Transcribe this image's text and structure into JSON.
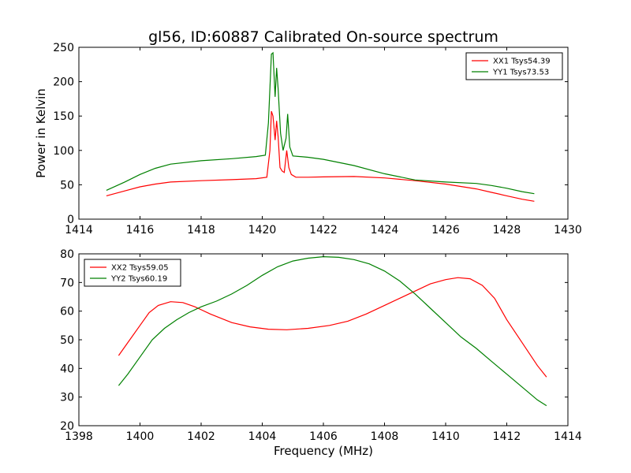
{
  "chart_data": [
    {
      "type": "line",
      "title": "gl56, ID:60887 Calibrated On-source spectrum",
      "xlabel": "",
      "ylabel": "Power in Kelvin",
      "xlim": [
        1414,
        1430
      ],
      "ylim": [
        0,
        250
      ],
      "xticks": [
        1414,
        1416,
        1418,
        1420,
        1422,
        1424,
        1426,
        1428,
        1430
      ],
      "yticks": [
        0,
        50,
        100,
        150,
        200,
        250
      ],
      "grid": false,
      "legend_position": "top-right",
      "series": [
        {
          "name": "XX1 Tsys54.39",
          "color": "#ff0000",
          "x": [
            1414.9,
            1415.5,
            1416.0,
            1416.5,
            1417.0,
            1418.0,
            1419.0,
            1419.8,
            1420.15,
            1420.25,
            1420.3,
            1420.35,
            1420.42,
            1420.47,
            1420.52,
            1420.58,
            1420.65,
            1420.72,
            1420.8,
            1420.87,
            1420.95,
            1421.1,
            1421.5,
            1422.0,
            1423.0,
            1424.0,
            1425.0,
            1426.0,
            1427.0,
            1427.5,
            1428.0,
            1428.5,
            1428.9
          ],
          "y": [
            34,
            41,
            47,
            51,
            54,
            56,
            57.5,
            59,
            61,
            100,
            157,
            150,
            115,
            143,
            120,
            75,
            70,
            68,
            100,
            75,
            65,
            61,
            61,
            61.5,
            62,
            60,
            56,
            51,
            44,
            39,
            34,
            29,
            26
          ]
        },
        {
          "name": "YY1 Tsys73.53",
          "color": "#008000",
          "x": [
            1414.9,
            1415.5,
            1416.0,
            1416.5,
            1417.0,
            1418.0,
            1419.0,
            1419.8,
            1420.1,
            1420.2,
            1420.3,
            1420.35,
            1420.42,
            1420.47,
            1420.52,
            1420.6,
            1420.68,
            1420.78,
            1420.83,
            1420.9,
            1421.0,
            1421.5,
            1422.0,
            1423.0,
            1424.0,
            1425.0,
            1426.0,
            1427.0,
            1427.5,
            1428.0,
            1428.5,
            1428.9
          ],
          "y": [
            42,
            54,
            65,
            74,
            80,
            85,
            88,
            91,
            93,
            140,
            240,
            242,
            178,
            220,
            190,
            125,
            100,
            118,
            153,
            105,
            92,
            90,
            87,
            78,
            66,
            57,
            54,
            52,
            49,
            45,
            40,
            37
          ]
        }
      ]
    },
    {
      "type": "line",
      "title": "",
      "xlabel": "Frequency (MHz)",
      "ylabel": "",
      "xlim": [
        1398,
        1414
      ],
      "ylim": [
        20,
        80
      ],
      "xticks": [
        1398,
        1400,
        1402,
        1404,
        1406,
        1408,
        1410,
        1412,
        1414
      ],
      "yticks": [
        20,
        30,
        40,
        50,
        60,
        70,
        80
      ],
      "grid": false,
      "legend_position": "top-left",
      "series": [
        {
          "name": "XX2 Tsys59.05",
          "color": "#ff0000",
          "x": [
            1399.3,
            1399.6,
            1400.0,
            1400.3,
            1400.6,
            1401.0,
            1401.4,
            1401.8,
            1402.3,
            1403.0,
            1403.6,
            1404.2,
            1404.8,
            1405.5,
            1406.2,
            1406.8,
            1407.4,
            1408.0,
            1408.5,
            1409.0,
            1409.5,
            1410.0,
            1410.4,
            1410.8,
            1411.2,
            1411.6,
            1412.0,
            1412.5,
            1413.0,
            1413.3
          ],
          "y": [
            44.5,
            49,
            55,
            59.5,
            62,
            63.3,
            63,
            61.5,
            59,
            56,
            54.5,
            53.7,
            53.5,
            54,
            55,
            56.5,
            59,
            62,
            64.5,
            67,
            69.5,
            71,
            71.7,
            71.3,
            69,
            64.5,
            57,
            49,
            41,
            37
          ]
        },
        {
          "name": "YY2 Tsys60.19",
          "color": "#008000",
          "x": [
            1399.3,
            1399.6,
            1400.0,
            1400.4,
            1400.8,
            1401.2,
            1401.6,
            1402.0,
            1402.5,
            1403.0,
            1403.5,
            1404.0,
            1404.5,
            1405.0,
            1405.5,
            1406.0,
            1406.5,
            1407.0,
            1407.5,
            1408.0,
            1408.5,
            1409.0,
            1409.5,
            1410.0,
            1410.5,
            1411.0,
            1411.5,
            1412.0,
            1412.5,
            1413.0,
            1413.3
          ],
          "y": [
            34,
            38,
            44,
            50,
            54,
            57,
            59.5,
            61.5,
            63.5,
            66,
            69,
            72.5,
            75.5,
            77.5,
            78.5,
            79,
            78.8,
            78,
            76.5,
            74,
            70.5,
            66,
            61,
            56,
            51,
            47,
            42.5,
            38,
            33.5,
            29,
            27
          ]
        }
      ]
    }
  ]
}
